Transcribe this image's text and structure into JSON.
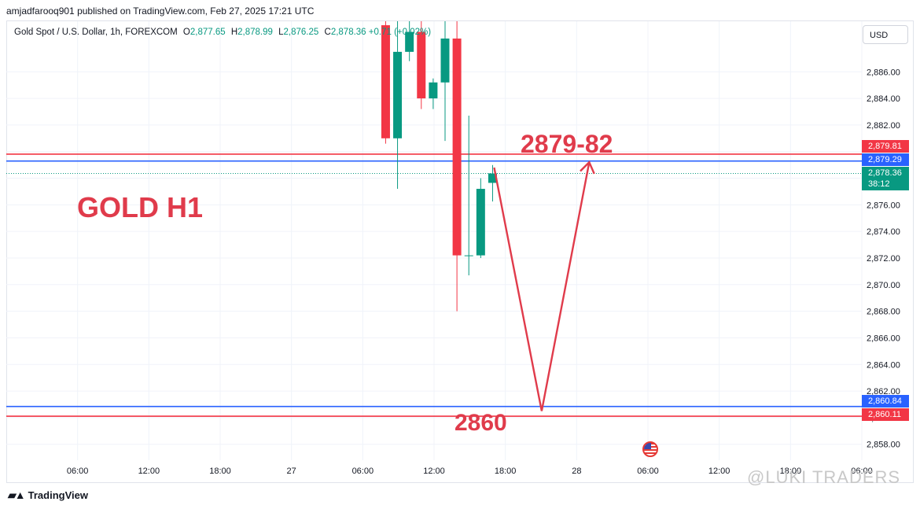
{
  "header": {
    "published_text": "amjadfarooq901 published on TradingView.com, Feb 27, 2025 17:21 UTC"
  },
  "legend": {
    "symbol": "Gold Spot / U.S. Dollar, 1h, FOREXCOM",
    "o_label": "O",
    "o_value": "2,877.65",
    "h_label": "H",
    "h_value": "2,878.99",
    "l_label": "L",
    "l_value": "2,876.25",
    "c_label": "C",
    "c_value": "2,878.36",
    "change": "+0.71 (+0.02%)"
  },
  "currency_button": "USD",
  "price_tags": {
    "resistance": "2,879.81",
    "blue_upper": "2,879.29",
    "last_price": "2,878.36",
    "countdown": "38:12",
    "blue_lower": "2,860.84",
    "support": "2,860.11"
  },
  "annotations": {
    "title": "GOLD H1",
    "target_label": "2879-82",
    "support_label": "2860"
  },
  "footer": {
    "logo": "TradingView",
    "watermark": "@LUKI TRADERS"
  },
  "colors": {
    "up": "#089981",
    "down": "#f23645",
    "annotation": "#e03b4b",
    "blue_line": "#2962ff",
    "grid": "#f0f3fa"
  },
  "chart_data": {
    "type": "candlestick",
    "y_axis": {
      "range": [
        2856.8,
        2889.8
      ],
      "ticks": [
        2858,
        2860,
        2862,
        2864,
        2866,
        2868,
        2870,
        2872,
        2874,
        2876,
        2878,
        2880,
        2882,
        2884,
        2886
      ],
      "tick_labels": [
        "2,858.00",
        "2,860.00",
        "2,862.00",
        "2,864.00",
        "2,866.00",
        "2,868.00",
        "2,870.00",
        "2,872.00",
        "2,874.00",
        "2,876.00",
        "2,878.00",
        "",
        "2,882.00",
        "2,884.00",
        "2,886.00"
      ]
    },
    "x_axis": {
      "unit": "hours",
      "range": [
        0,
        72
      ],
      "ticks": [
        6,
        12,
        18,
        24,
        30,
        36,
        42,
        48,
        54,
        60,
        66,
        72
      ],
      "tick_labels": [
        "06:00",
        "12:00",
        "18:00",
        "27",
        "06:00",
        "12:00",
        "18:00",
        "28",
        "06:00",
        "12:00",
        "18:00",
        "06:00"
      ]
    },
    "candles": [
      {
        "t": 31,
        "o": 2889.5,
        "h": 2889.8,
        "l": 2880.6,
        "c": 2881.0
      },
      {
        "t": 32,
        "o": 2881.0,
        "h": 2889.8,
        "l": 2877.2,
        "c": 2887.5
      },
      {
        "t": 33,
        "o": 2887.5,
        "h": 2889.8,
        "l": 2886.8,
        "c": 2889.0
      },
      {
        "t": 34,
        "o": 2889.0,
        "h": 2889.8,
        "l": 2883.2,
        "c": 2884.0
      },
      {
        "t": 35,
        "o": 2884.0,
        "h": 2885.5,
        "l": 2883.2,
        "c": 2885.2
      },
      {
        "t": 36,
        "o": 2885.2,
        "h": 2889.8,
        "l": 2880.8,
        "c": 2888.5
      },
      {
        "t": 37,
        "o": 2888.5,
        "h": 2889.8,
        "l": 2868.0,
        "c": 2872.2
      },
      {
        "t": 38,
        "o": 2872.2,
        "h": 2882.7,
        "l": 2870.7,
        "c": 2872.2
      },
      {
        "t": 39,
        "o": 2872.2,
        "h": 2878.0,
        "l": 2872.0,
        "c": 2877.2
      },
      {
        "t": 40,
        "o": 2877.65,
        "h": 2878.99,
        "l": 2876.25,
        "c": 2878.36
      }
    ],
    "horizontal_lines": [
      {
        "name": "resistance",
        "value": 2879.81,
        "color": "#f23645"
      },
      {
        "name": "blue upper",
        "value": 2879.29,
        "color": "#2962ff"
      },
      {
        "name": "blue lower",
        "value": 2860.84,
        "color": "#2962ff"
      },
      {
        "name": "support",
        "value": 2860.11,
        "color": "#f23645"
      }
    ],
    "last_price": 2878.36,
    "projection_path": [
      {
        "t": 40,
        "y": 2878.8
      },
      {
        "t": 44,
        "y": 2860.5
      },
      {
        "t": 48,
        "y": 2879.2
      }
    ]
  }
}
